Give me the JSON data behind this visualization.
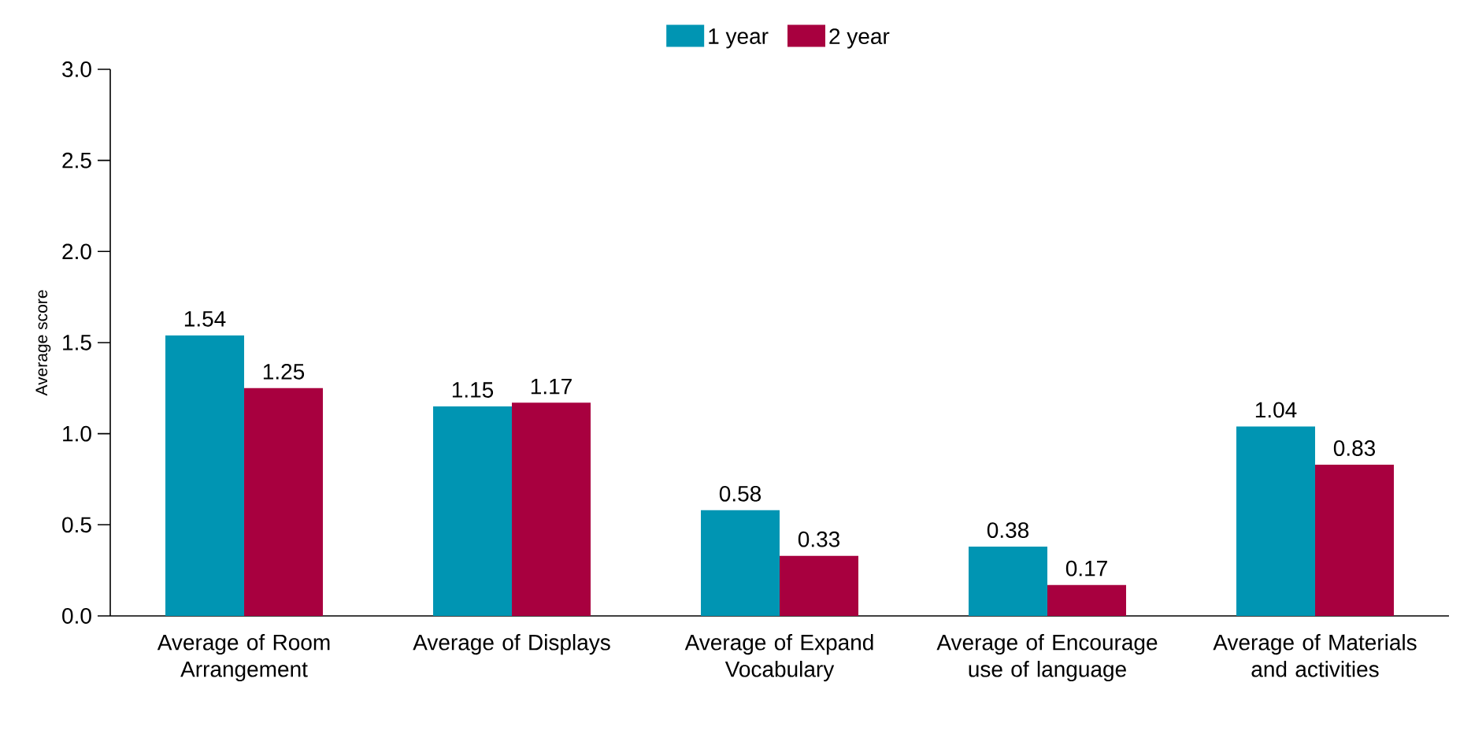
{
  "chart_data": {
    "type": "bar",
    "ylabel": "Average score",
    "categories": [
      "Average of Room Arrangement",
      "Average of Displays",
      "Average of Expand Vocabulary",
      "Average of Encourage use of language",
      "Average of Materials and activities"
    ],
    "series": [
      {
        "name": "1 year",
        "color": "#0095b3",
        "values": [
          1.54,
          1.15,
          0.58,
          0.38,
          1.04
        ]
      },
      {
        "name": "2 year",
        "color": "#a8003f",
        "values": [
          1.25,
          1.17,
          0.33,
          0.17,
          0.83
        ]
      }
    ],
    "ylim": [
      0,
      3
    ],
    "yticks": [
      {
        "value": 0,
        "label": "0.0"
      },
      {
        "value": 0.5,
        "label": "0.5"
      },
      {
        "value": 1,
        "label": "1.0"
      },
      {
        "value": 1.5,
        "label": "1.5"
      },
      {
        "value": 2,
        "label": "2.0"
      },
      {
        "value": 2.5,
        "label": "2.5"
      },
      {
        "value": 3,
        "label": "3.0"
      }
    ],
    "data_labels": true,
    "grid": false,
    "legend": "top"
  }
}
